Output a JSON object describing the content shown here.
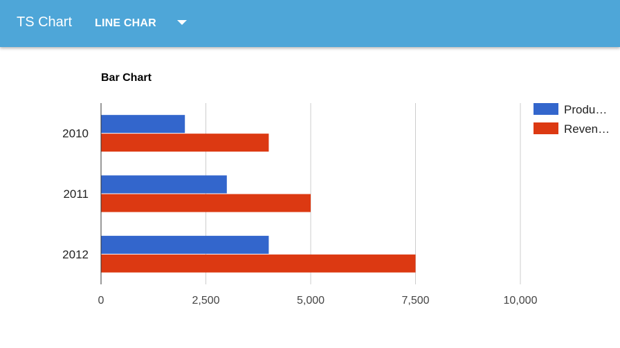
{
  "app": {
    "title": "TS Chart",
    "chart_type_select": "LINE CHAR"
  },
  "colors": {
    "appbar": "#4ea6d8",
    "series_1": "#3366cc",
    "series_2": "#dc3912",
    "gridline": "#cccccc"
  },
  "chart_data": {
    "type": "bar",
    "orientation": "horizontal",
    "title": "Bar Chart",
    "categories": [
      "2010",
      "2011",
      "2012"
    ],
    "series": [
      {
        "name": "Produ…",
        "values": [
          2000,
          3000,
          4000
        ]
      },
      {
        "name": "Reven…",
        "values": [
          4000,
          5000,
          7500
        ]
      }
    ],
    "xlim": [
      0,
      10000
    ],
    "x_ticks": [
      "0",
      "2,500",
      "5,000",
      "7,500",
      "10,000"
    ],
    "x_tick_values": [
      0,
      2500,
      5000,
      7500,
      10000
    ],
    "grid": true,
    "legend_position": "right"
  }
}
